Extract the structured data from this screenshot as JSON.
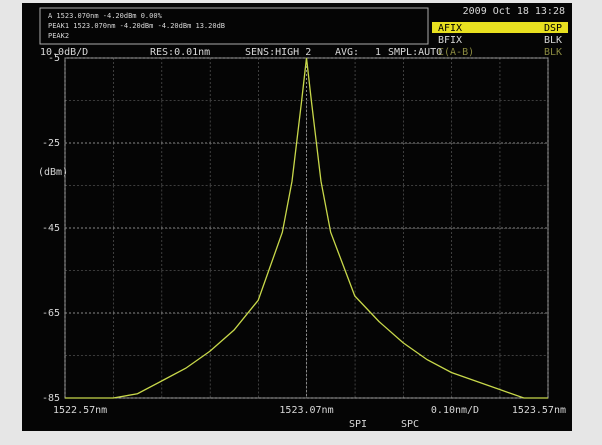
{
  "header": {
    "datetime": "2009 Oct 18 13:28",
    "readouts": [
      "A     1523.070nm   -4.20dBm   0.00%",
      "PEAK1 1523.070nm   -4.20dBm        -4.20dBm     13.20dB",
      "PEAK2"
    ],
    "traces": [
      {
        "name": "AFIX",
        "state": "DSP"
      },
      {
        "name": "BFIX",
        "state": "BLK"
      },
      {
        "name": "C(A-B)",
        "state": "BLK"
      }
    ],
    "settings": [
      "10.0dB/D",
      "RES:0.01nm",
      "SENS:HIGH 2",
      "AVG:",
      "1",
      "SMPL:AUTO"
    ]
  },
  "chart_data": {
    "type": "line",
    "ylabel": "(dBm)",
    "xscale_label": "0.10nm/D",
    "x": [
      1522.57,
      1522.62,
      1522.67,
      1522.72,
      1522.77,
      1522.82,
      1522.87,
      1522.92,
      1522.97,
      1523.02,
      1523.04,
      1523.06,
      1523.07,
      1523.08,
      1523.1,
      1523.12,
      1523.17,
      1523.22,
      1523.27,
      1523.32,
      1523.37,
      1523.42,
      1523.47,
      1523.52,
      1523.57
    ],
    "series": [
      {
        "name": "A",
        "color": "#c8d84a",
        "values": [
          -85,
          -85,
          -85,
          -84,
          -81,
          -78,
          -74,
          -69,
          -62,
          -46,
          -34,
          -15,
          -5,
          -15,
          -34,
          -46,
          -61,
          -67,
          -72,
          -76,
          -79,
          -81,
          -83,
          -85,
          -85
        ]
      }
    ],
    "xlim": [
      1522.57,
      1523.57
    ],
    "xticks": [
      {
        "value": 1522.57,
        "label": "1522.57nm"
      },
      {
        "value": 1523.07,
        "label": "1523.07nm"
      },
      {
        "value": 1523.57,
        "label": "1523.57nm"
      }
    ],
    "ylim": [
      -85,
      -5
    ],
    "yticks": [
      -5,
      -25,
      -45,
      -65,
      -85
    ],
    "grid": true
  },
  "softkeys": [
    "SPI",
    "SPC"
  ]
}
